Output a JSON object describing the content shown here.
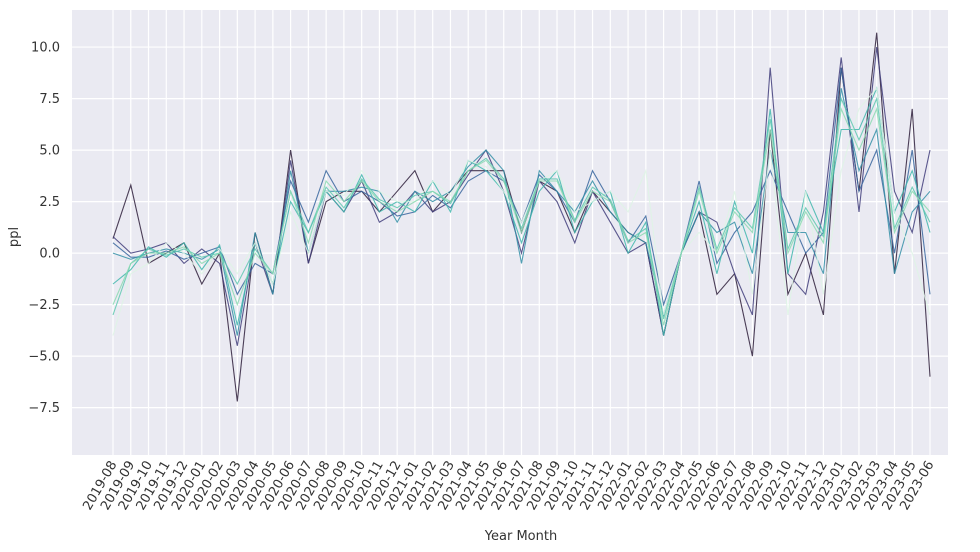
{
  "chart_data": {
    "type": "line",
    "x_label": "Year Month",
    "y_label": "ppl",
    "categories": [
      "2019-08",
      "2019-09",
      "2019-10",
      "2019-11",
      "2019-12",
      "2020-01",
      "2020-02",
      "2020-03",
      "2020-04",
      "2020-05",
      "2020-06",
      "2020-07",
      "2020-08",
      "2020-09",
      "2020-10",
      "2020-11",
      "2020-12",
      "2021-01",
      "2021-02",
      "2021-03",
      "2021-04",
      "2021-05",
      "2021-06",
      "2021-07",
      "2021-08",
      "2021-09",
      "2021-10",
      "2021-11",
      "2021-12",
      "2022-01",
      "2022-02",
      "2022-03",
      "2022-04",
      "2022-05",
      "2022-06",
      "2022-07",
      "2022-08",
      "2022-09",
      "2022-10",
      "2022-11",
      "2022-12",
      "2023-01",
      "2023-02",
      "2023-03",
      "2023-04",
      "2023-05",
      "2023-06"
    ],
    "ylim": [
      -9.8,
      11.8
    ],
    "yticks": [
      {
        "value": -7.5,
        "label": "−7.5"
      },
      {
        "value": -5,
        "label": "−5.0"
      },
      {
        "value": -2.5,
        "label": "−2.5"
      },
      {
        "value": 0,
        "label": "0.0"
      },
      {
        "value": 2.5,
        "label": "2.5"
      },
      {
        "value": 5,
        "label": "5.0"
      },
      {
        "value": 7.5,
        "label": "7.5"
      },
      {
        "value": 10,
        "label": "10.0"
      }
    ],
    "grid": true,
    "series": [
      {
        "color": "#2e1e3b",
        "values": [
          0.7,
          3.3,
          -0.5,
          0,
          0.5,
          -1.5,
          0,
          -7.2,
          1,
          -2,
          5,
          -0.5,
          2.5,
          3,
          3,
          2,
          3,
          4,
          2,
          3,
          4,
          4,
          4,
          1,
          3.5,
          3,
          1,
          3,
          2,
          1,
          0.5,
          -4,
          0,
          2,
          -2,
          -1,
          -5,
          6,
          -2,
          0,
          -3,
          9,
          3,
          10.7,
          -1,
          7,
          -6
        ]
      },
      {
        "color": "#413d7b",
        "values": [
          0.8,
          0,
          0.2,
          0.5,
          -0.5,
          0.2,
          -0.5,
          -4.5,
          0.5,
          -2,
          4.5,
          -0.5,
          3,
          2,
          3.5,
          1.5,
          2,
          3,
          2,
          2.5,
          3.8,
          5,
          3,
          0,
          3.5,
          2.5,
          0.5,
          3,
          1.5,
          0,
          0.5,
          -4,
          0,
          2,
          1.5,
          -1,
          -3,
          9,
          -1,
          -2,
          2,
          9.5,
          2,
          10,
          3,
          1,
          5
        ]
      },
      {
        "color": "#37659e",
        "values": [
          0.5,
          -0.2,
          -0.2,
          0.1,
          -0.3,
          0,
          0.3,
          -2,
          -0.5,
          -1,
          3.5,
          1.5,
          4,
          2.5,
          3,
          2.5,
          1.8,
          2,
          2.8,
          2.2,
          3.5,
          4,
          3.5,
          1.5,
          3.8,
          3,
          1.5,
          4,
          2.5,
          0.5,
          1.8,
          -2.5,
          0,
          3.5,
          -0.5,
          1,
          2,
          4,
          2,
          0,
          1,
          9,
          3,
          5,
          0,
          5,
          -2
        ]
      },
      {
        "color": "#348fa7",
        "values": [
          0,
          -0.3,
          0,
          0.2,
          0,
          -0.3,
          0.2,
          -4,
          1,
          -2,
          4,
          0,
          3,
          3,
          3.2,
          3,
          1.5,
          3,
          2.5,
          3,
          4.2,
          5,
          4,
          -0.5,
          4,
          3,
          2,
          3.5,
          2,
          1,
          0.5,
          -3,
          0,
          2,
          1,
          1.5,
          -1,
          5,
          1,
          1,
          -1,
          8,
          4,
          6,
          -1,
          2,
          3
        ]
      },
      {
        "color": "#40b7ad",
        "values": [
          -1.5,
          -0.8,
          0.3,
          -0.2,
          0.5,
          -0.8,
          0.4,
          -3.5,
          0.5,
          -1.5,
          2.5,
          1,
          3,
          2,
          3.8,
          2,
          2.5,
          2,
          3.5,
          2,
          4.5,
          4,
          3,
          0.5,
          3,
          4,
          1,
          2.5,
          3,
          0,
          1.5,
          -4,
          0,
          2.5,
          -1,
          2.5,
          0,
          7,
          -1,
          3,
          1,
          6,
          6,
          8,
          2,
          4,
          1
        ]
      },
      {
        "color": "#def5e5",
        "values": [
          -4,
          -1,
          -0.5,
          0.5,
          0,
          -1,
          0.2,
          -1,
          0.5,
          -1.5,
          2,
          0,
          3,
          2.8,
          4,
          3,
          2.5,
          2.5,
          3.5,
          2.8,
          4.5,
          4.2,
          3,
          1.5,
          3.5,
          4,
          2,
          2.5,
          3,
          2,
          4,
          -3,
          0,
          1,
          0,
          3,
          -2,
          5,
          -3,
          3,
          -2,
          4,
          7,
          8,
          2,
          0,
          -3
        ]
      },
      {
        "color": "#5fc9b0",
        "values": [
          -3,
          -0.5,
          0.2,
          -0.1,
          0.2,
          -0.2,
          0,
          -1.5,
          0.2,
          -1,
          3,
          1,
          3.2,
          2.2,
          3.6,
          2.6,
          2.2,
          2.8,
          3,
          2.4,
          4,
          4.6,
          3.6,
          1.2,
          3.6,
          3.6,
          1.6,
          3.2,
          2.6,
          0.6,
          1.2,
          -3.2,
          0,
          3.2,
          0.2,
          2.2,
          1.2,
          6.5,
          0.2,
          2.2,
          0.8,
          7.5,
          5.5,
          7.5,
          1.2,
          3.2,
          1.5
        ]
      },
      {
        "color": "#8bdab2",
        "values": [
          -2.5,
          -0.5,
          0,
          0,
          0.3,
          -0.5,
          0,
          -2.5,
          0,
          -1,
          3,
          0.5,
          3.5,
          2.5,
          3.5,
          2.5,
          2,
          2.5,
          3,
          2.5,
          4,
          4.5,
          3.5,
          1,
          3.5,
          3.5,
          1.5,
          3,
          2.5,
          0.5,
          1,
          -3.5,
          0,
          3,
          0,
          2,
          1,
          6,
          0,
          2,
          0.5,
          7,
          5,
          7,
          1,
          3,
          2
        ]
      }
    ]
  }
}
